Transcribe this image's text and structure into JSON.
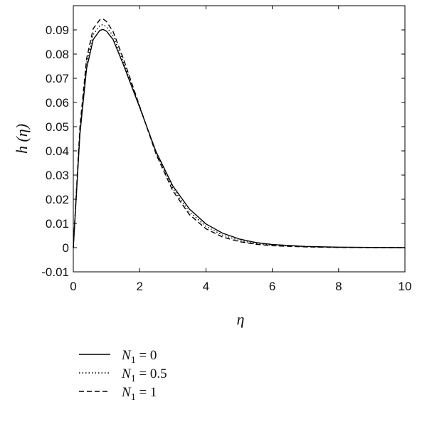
{
  "chart_data": {
    "type": "line",
    "title": "",
    "xlabel": "η",
    "ylabel": "h (η)",
    "xlim": [
      0,
      10
    ],
    "ylim": [
      -0.01,
      0.1
    ],
    "xticks": [
      0,
      2,
      4,
      6,
      8,
      10
    ],
    "yticks": [
      -0.01,
      0,
      0.01,
      0.02,
      0.03,
      0.04,
      0.05,
      0.06,
      0.07,
      0.08,
      0.09
    ],
    "xtick_labels": [
      "0",
      "2",
      "4",
      "6",
      "8",
      "10"
    ],
    "ytick_labels": [
      "-0.01",
      "0",
      "0.01",
      "0.02",
      "0.03",
      "0.04",
      "0.05",
      "0.06",
      "0.07",
      "0.08",
      "0.09"
    ],
    "grid": false,
    "legend_position": "below",
    "series": [
      {
        "name": "N1 = 0",
        "legend_var": "N",
        "legend_sub": "1",
        "legend_val": " = 0",
        "style": "solid",
        "color": "#000000",
        "x": [
          0,
          0.2,
          0.4,
          0.6,
          0.8,
          0.9,
          1.0,
          1.2,
          1.5,
          2.0,
          2.5,
          3.0,
          3.5,
          4.0,
          4.5,
          5.0,
          5.5,
          6.0,
          7.0,
          8.0,
          9.0,
          10.0
        ],
        "y": [
          0,
          0.047,
          0.074,
          0.086,
          0.0898,
          0.0902,
          0.0895,
          0.086,
          0.076,
          0.058,
          0.0395,
          0.0255,
          0.016,
          0.0098,
          0.006,
          0.0036,
          0.0021,
          0.0013,
          0.0005,
          0.0002,
          0.0001,
          0
        ]
      },
      {
        "name": "N1 = 0.5",
        "legend_var": "N",
        "legend_sub": "1",
        "legend_val": " = 0.5",
        "style": "dotted",
        "color": "#000000",
        "x": [
          0,
          0.2,
          0.4,
          0.6,
          0.8,
          0.9,
          1.0,
          1.2,
          1.5,
          2.0,
          2.5,
          3.0,
          3.5,
          4.0,
          4.5,
          5.0,
          5.5,
          6.0,
          7.0,
          8.0,
          9.0,
          10.0
        ],
        "y": [
          0,
          0.0485,
          0.076,
          0.088,
          0.0918,
          0.0922,
          0.0913,
          0.0875,
          0.0772,
          0.0582,
          0.039,
          0.0245,
          0.0148,
          0.0088,
          0.0052,
          0.003,
          0.0017,
          0.001,
          0.0004,
          0.0001,
          0.0001,
          0
        ]
      },
      {
        "name": "N1 = 1",
        "legend_var": "N",
        "legend_sub": "1",
        "legend_val": " = 1",
        "style": "dashed",
        "color": "#000000",
        "x": [
          0,
          0.2,
          0.4,
          0.6,
          0.8,
          0.9,
          1.0,
          1.2,
          1.5,
          2.0,
          2.5,
          3.0,
          3.5,
          4.0,
          4.5,
          5.0,
          5.5,
          6.0,
          7.0,
          8.0,
          9.0,
          10.0
        ],
        "y": [
          0,
          0.05,
          0.078,
          0.0905,
          0.0942,
          0.0945,
          0.0935,
          0.0893,
          0.0785,
          0.0585,
          0.0385,
          0.0235,
          0.0137,
          0.0078,
          0.0044,
          0.0025,
          0.0014,
          0.0008,
          0.0003,
          0.0001,
          0,
          0
        ]
      }
    ]
  }
}
